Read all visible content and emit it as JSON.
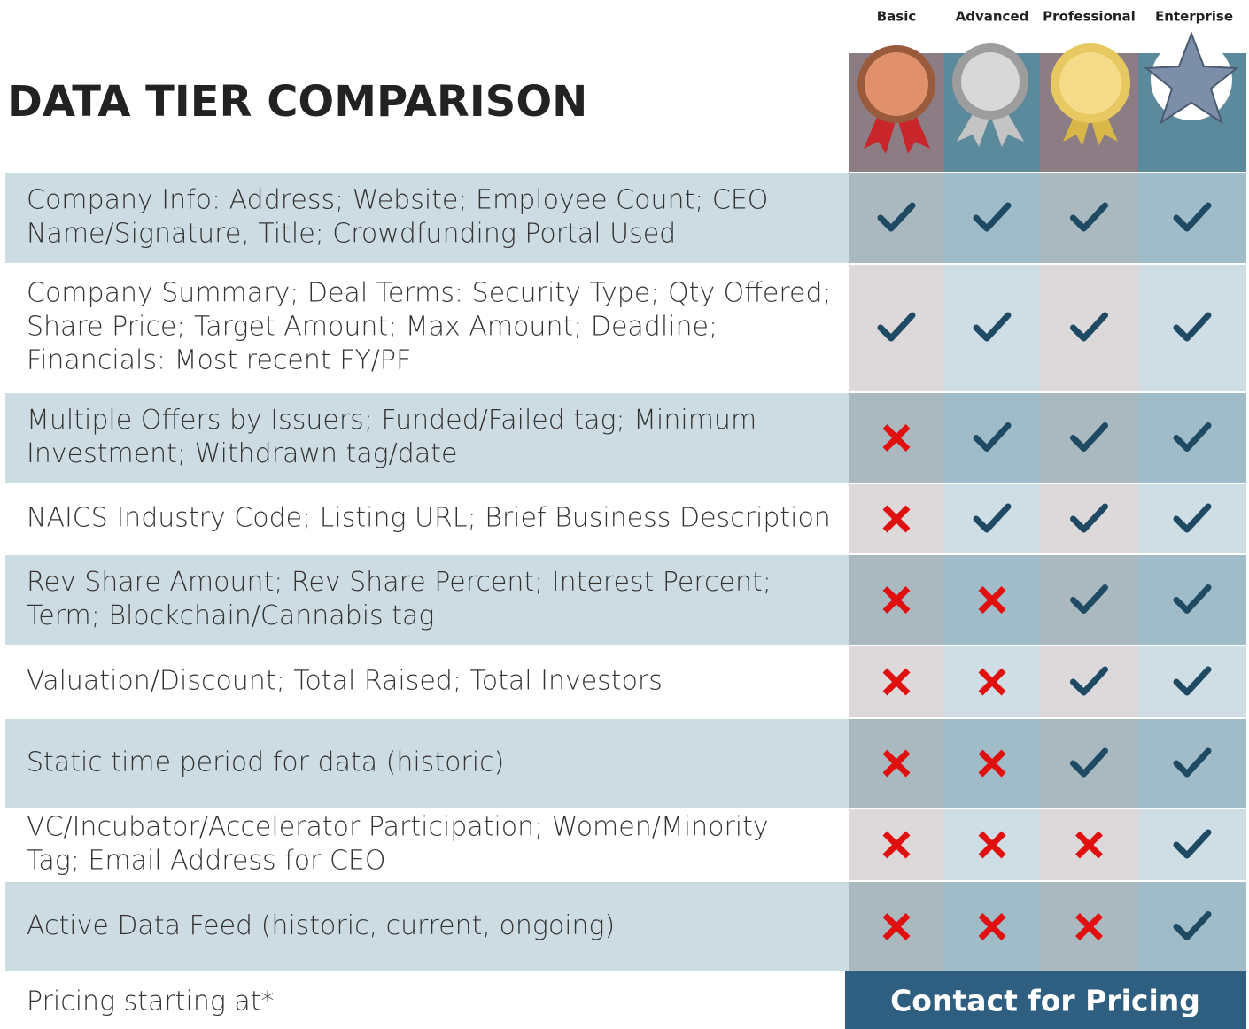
{
  "title": "DATA TIER COMPARISON",
  "tiers": [
    "Basic",
    "Advanced",
    "Professional",
    "Enterprise"
  ],
  "rows": [
    {
      "label": [
        "Company Info: Address; Website; Employee Count; CEO",
        "Name/Signature, Title; Crowdfunding Portal Used"
      ],
      "included": [
        true,
        true,
        true,
        true
      ]
    },
    {
      "label": [
        "Company Summary; Deal Terms: Security Type; Qty Offered;",
        "Share Price; Target Amount; Max Amount; Deadline;",
        "Financials: Most recent FY/PF"
      ],
      "included": [
        true,
        true,
        true,
        true
      ]
    },
    {
      "label": [
        "Multiple Offers by Issuers; Funded/Failed tag; Minimum",
        "Investment; Withdrawn tag/date"
      ],
      "included": [
        false,
        true,
        true,
        true
      ]
    },
    {
      "label": [
        "NAICS Industry Code; Listing URL; Brief Business Description"
      ],
      "included": [
        false,
        true,
        true,
        true
      ]
    },
    {
      "label": [
        "Rev Share Amount; Rev Share Percent; Interest Percent;",
        "Term; Blockchain/Cannabis tag"
      ],
      "included": [
        false,
        false,
        true,
        true
      ]
    },
    {
      "label": [
        "Valuation/Discount; Total Raised; Total Investors"
      ],
      "included": [
        false,
        false,
        true,
        true
      ]
    },
    {
      "label": [
        "Static time period for data (historic)"
      ],
      "included": [
        false,
        false,
        true,
        true
      ]
    },
    {
      "label": [
        "VC/Incubator/Accelerator Participation; Women/Minority",
        "Tag; Email Address for CEO"
      ],
      "included": [
        false,
        false,
        false,
        true
      ]
    },
    {
      "label": [
        "Active Data Feed (historic, current, ongoing)"
      ],
      "included": [
        false,
        false,
        false,
        true
      ]
    }
  ],
  "pricing": {
    "label": "Pricing starting at*",
    "button": "Contact for Pricing"
  }
}
